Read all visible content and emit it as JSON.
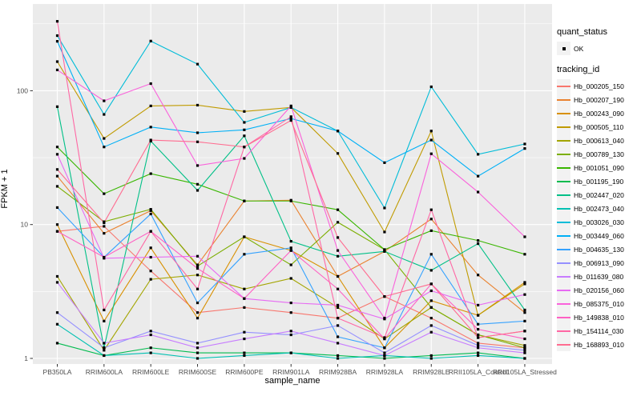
{
  "figure": {
    "background": "#FFFFFF",
    "panel_background": "#EBEBEB",
    "grid_color": "#FFFFFF",
    "tick_label_color": "#4D4D4D",
    "point_color": "#000000"
  },
  "legend": {
    "quant_status_title": "quant_status",
    "quant_status_value": "OK",
    "tracking_title": "tracking_id"
  },
  "chart_data": {
    "type": "line",
    "title": "",
    "xlabel": "sample_name",
    "ylabel": "FPKM + 1",
    "y_scale": "log10",
    "y_ticks": [
      1,
      10,
      100
    ],
    "ylim": [
      0.95,
      420
    ],
    "grid": "major-and-minor-white-on-gray",
    "legend_position": "right",
    "point_shape": "small-black-square",
    "categories": [
      "PB350LA",
      "RRIM600LA",
      "RRIM600LE",
      "RRIM600SE",
      "RRIM600PE",
      "RRIM901LA",
      "RRIM928BA",
      "RRIM928LA",
      "RRIM928LE",
      "RRII105LA_Control",
      "RRII105LA_Stressed"
    ],
    "series": [
      {
        "name": "Hb_000205_150",
        "color": "#F8766D",
        "values": [
          8.9,
          9.7,
          4.5,
          2.2,
          2.4,
          2.2,
          2.0,
          2.9,
          2.0,
          1.3,
          1.2
        ]
      },
      {
        "name": "Hb_000207_190",
        "color": "#EA8331",
        "values": [
          23,
          8.6,
          12.7,
          5.0,
          15,
          15.2,
          4.1,
          6.3,
          11,
          4.2,
          2.2
        ]
      },
      {
        "name": "Hb_000243_090",
        "color": "#D89000",
        "values": [
          10,
          1.9,
          6.7,
          2.0,
          8.1,
          6.4,
          4.1,
          1.2,
          2.7,
          2.1,
          3.7
        ]
      },
      {
        "name": "Hb_000505_110",
        "color": "#C09B00",
        "values": [
          165,
          44,
          77,
          78,
          70,
          75,
          34,
          8.8,
          50,
          2.1,
          3.6
        ]
      },
      {
        "name": "Hb_000613_040",
        "color": "#A3A500",
        "values": [
          4.1,
          1.15,
          3.9,
          4.2,
          3.3,
          3.96,
          2.4,
          1.4,
          2.4,
          1.5,
          1.25
        ]
      },
      {
        "name": "Hb_000789_130",
        "color": "#7CAE00",
        "values": [
          19.3,
          10.5,
          13,
          4.9,
          8.1,
          5.0,
          10.4,
          6.5,
          2.4,
          1.5,
          1.2
        ]
      },
      {
        "name": "Hb_001051_090",
        "color": "#39B600",
        "values": [
          38,
          17,
          24,
          20,
          15,
          15,
          12.9,
          6.5,
          9,
          7.6,
          6
        ]
      },
      {
        "name": "Hb_001195_190",
        "color": "#00BB4E",
        "values": [
          1.3,
          1.05,
          1.2,
          1.1,
          1.1,
          1.1,
          1.05,
          1.0,
          1.05,
          1.1,
          1.0
        ]
      },
      {
        "name": "Hb_002447_020",
        "color": "#00C087",
        "values": [
          76,
          1.2,
          42,
          18,
          46,
          7.5,
          5.8,
          6.3,
          4.55,
          7.2,
          2.3
        ]
      },
      {
        "name": "Hb_002473_040",
        "color": "#00C0B2",
        "values": [
          1.8,
          1.05,
          1.1,
          1.0,
          1.05,
          1.1,
          1.0,
          1.05,
          1.0,
          1.05,
          1.0
        ]
      },
      {
        "name": "Hb_003026_030",
        "color": "#00BCD8",
        "values": [
          258,
          66.5,
          235,
          158,
          58,
          75,
          50,
          13.3,
          107,
          33.5,
          40
        ]
      },
      {
        "name": "Hb_003449_060",
        "color": "#00B0F6",
        "values": [
          234,
          38,
          53.5,
          48.5,
          51,
          62,
          50,
          29,
          42.8,
          23,
          37
        ]
      },
      {
        "name": "Hb_004635_130",
        "color": "#35A2FF",
        "values": [
          13.4,
          5.7,
          12,
          2.6,
          6,
          6.7,
          1.45,
          1.2,
          6,
          1.8,
          1.9
        ]
      },
      {
        "name": "Hb_006913_090",
        "color": "#9590FF",
        "values": [
          2.2,
          1.2,
          1.6,
          1.3,
          1.57,
          1.5,
          1.76,
          1.1,
          1.76,
          1.25,
          1.15
        ]
      },
      {
        "name": "Hb_011639_080",
        "color": "#C77CFF",
        "values": [
          3.7,
          1.3,
          1.5,
          1.2,
          1.4,
          1.6,
          1.3,
          1.05,
          1.57,
          1.2,
          1.1
        ]
      },
      {
        "name": "Hb_020156_060",
        "color": "#E76BF3",
        "values": [
          33.5,
          5.6,
          5.7,
          5.8,
          2.8,
          2.6,
          2.5,
          1.97,
          3.2,
          2.5,
          3.0
        ]
      },
      {
        "name": "Hb_085375_010",
        "color": "#FA62DB",
        "values": [
          143,
          84,
          113,
          27.6,
          31.2,
          77,
          6.4,
          2.0,
          33.8,
          17.5,
          8.1
        ]
      },
      {
        "name": "Hb_149838_010",
        "color": "#FF61C3",
        "values": [
          8.9,
          5.7,
          8.9,
          4.7,
          2.8,
          6.4,
          3.3,
          1.4,
          3.6,
          1.65,
          1.4
        ]
      },
      {
        "name": "Hb_154114_030",
        "color": "#FF67A4",
        "values": [
          330,
          2.3,
          8.9,
          3.3,
          38,
          64,
          2.0,
          1.43,
          12.9,
          1.43,
          1.6
        ]
      },
      {
        "name": "Hb_168893_010",
        "color": "#FF6C90",
        "values": [
          25.8,
          10.3,
          42.8,
          41.5,
          38,
          60,
          8,
          2.9,
          3.6,
          1.43,
          1.6
        ]
      }
    ]
  }
}
